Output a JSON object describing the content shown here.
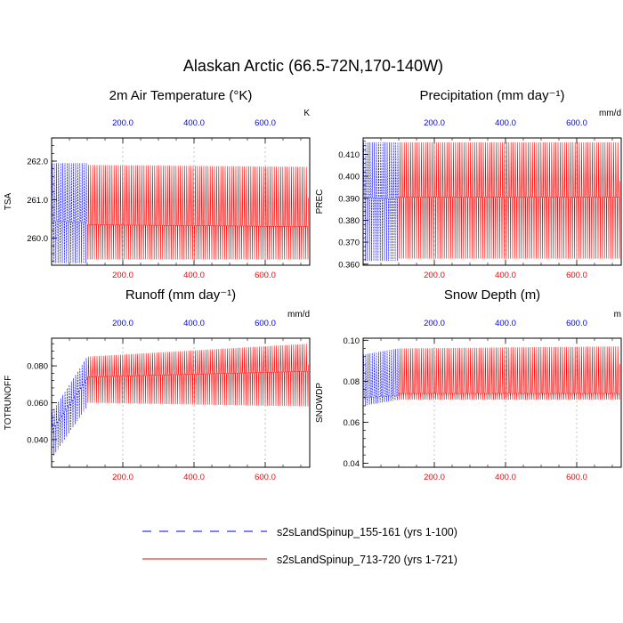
{
  "figure": {
    "title": "Alaskan Arctic (66.5-72N,170-140W)"
  },
  "legend": [
    {
      "label": "s2sLandSpinup_155-161 (yrs 1-100)",
      "color": "#0000ff",
      "style": "dashed"
    },
    {
      "label": "s2sLandSpinup_713-720 (yrs 1-721)",
      "color": "#ff0000",
      "style": "solid"
    }
  ],
  "colors": {
    "series_a": "#0000ff",
    "series_b": "#ff0000",
    "grid": "#9a9a9a",
    "axis": "#000000"
  },
  "chart_data": [
    {
      "type": "line",
      "id": "tsa",
      "title": "2m Air Temperature (°K)",
      "units": "K",
      "ylabel": "TSA",
      "xlim": [
        0,
        725
      ],
      "ylim": [
        259.3,
        262.6
      ],
      "yticks": [
        260.0,
        261.0,
        262.0
      ],
      "ytick_labels": [
        "260.0",
        "261.0",
        "262.0"
      ],
      "top_ticks": [
        200,
        400,
        600
      ],
      "top_tick_labels": [
        "200.0",
        "400.0",
        "600.0"
      ],
      "bottom_ticks": [
        200,
        400,
        600
      ],
      "bottom_tick_labels": [
        "200.0",
        "400.0",
        "600.0"
      ],
      "grid_x": [
        200,
        400,
        600
      ],
      "series": [
        {
          "name": "s2sLandSpinup_155-161 (yrs 1-100)",
          "x_range": [
            1,
            100
          ],
          "cycle_max": [
            261.95,
            261.95
          ],
          "cycle_min": [
            259.35,
            259.35
          ],
          "mean_line": [
            260.45,
            260.4
          ]
        },
        {
          "name": "s2sLandSpinup_713-720 (yrs 1-721)",
          "x_range": [
            100,
            721
          ],
          "cycle_max": [
            261.9,
            261.85
          ],
          "cycle_min": [
            259.45,
            259.45
          ],
          "mean_line": [
            260.35,
            260.3
          ]
        }
      ]
    },
    {
      "type": "line",
      "id": "prec",
      "title": "Precipitation (mm day⁻¹)",
      "units": "mm/d",
      "ylabel": "PREC",
      "xlim": [
        0,
        725
      ],
      "ylim": [
        0.3595,
        0.4175
      ],
      "yticks": [
        0.36,
        0.37,
        0.38,
        0.39,
        0.4,
        0.41
      ],
      "ytick_labels": [
        "0.360",
        "0.370",
        "0.380",
        "0.390",
        "0.400",
        "0.410"
      ],
      "top_ticks": [
        200,
        400,
        600
      ],
      "top_tick_labels": [
        "200.0",
        "400.0",
        "600.0"
      ],
      "bottom_ticks": [
        200,
        400,
        600
      ],
      "bottom_tick_labels": [
        "200.0",
        "400.0",
        "600.0"
      ],
      "grid_x": [
        200,
        400,
        600
      ],
      "series": [
        {
          "name": "s2sLandSpinup_155-161 (yrs 1-100)",
          "x_range": [
            1,
            100
          ],
          "cycle_max": [
            0.4155,
            0.4155
          ],
          "cycle_min": [
            0.3615,
            0.3615
          ],
          "mean_line": [
            0.39,
            0.39
          ]
        },
        {
          "name": "s2sLandSpinup_713-720 (yrs 1-721)",
          "x_range": [
            100,
            721
          ],
          "cycle_max": [
            0.4155,
            0.4155
          ],
          "cycle_min": [
            0.3625,
            0.3625
          ],
          "mean_line": [
            0.3905,
            0.3905
          ]
        }
      ]
    },
    {
      "type": "line",
      "id": "runoff",
      "title": "Runoff (mm day⁻¹)",
      "units": "mm/d",
      "ylabel": "TOTRUNOFF",
      "xlim": [
        0,
        725
      ],
      "ylim": [
        0.025,
        0.095
      ],
      "yticks": [
        0.04,
        0.06,
        0.08
      ],
      "ytick_labels": [
        "0.040",
        "0.060",
        "0.080"
      ],
      "top_ticks": [
        200,
        400,
        600
      ],
      "top_tick_labels": [
        "200.0",
        "400.0",
        "600.0"
      ],
      "bottom_ticks": [
        200,
        400,
        600
      ],
      "bottom_tick_labels": [
        "200.0",
        "400.0",
        "600.0"
      ],
      "grid_x": [
        200,
        400,
        600
      ],
      "series": [
        {
          "name": "s2sLandSpinup_155-161 (yrs 1-100)",
          "x_range": [
            1,
            100
          ],
          "cycle_max": [
            0.055,
            0.085
          ],
          "cycle_min": [
            0.03,
            0.058
          ],
          "mean_line": [
            0.045,
            0.073
          ]
        },
        {
          "name": "s2sLandSpinup_713-720 (yrs 1-721)",
          "x_range": [
            100,
            721
          ],
          "cycle_max": [
            0.085,
            0.092
          ],
          "cycle_min": [
            0.06,
            0.058
          ],
          "mean_line": [
            0.074,
            0.077
          ]
        }
      ]
    },
    {
      "type": "line",
      "id": "snowdp",
      "title": "Snow Depth (m)",
      "units": "m",
      "ylabel": "SNOWDP",
      "xlim": [
        0,
        725
      ],
      "ylim": [
        0.038,
        0.101
      ],
      "yticks": [
        0.04,
        0.06,
        0.08,
        0.1
      ],
      "ytick_labels": [
        "0.04",
        "0.06",
        "0.08",
        "0.10"
      ],
      "top_ticks": [
        200,
        400,
        600
      ],
      "top_tick_labels": [
        "200.0",
        "400.0",
        "600.0"
      ],
      "bottom_ticks": [
        200,
        400,
        600
      ],
      "bottom_tick_labels": [
        "200.0",
        "400.0",
        "600.0"
      ],
      "grid_x": [
        200,
        400,
        600
      ],
      "series": [
        {
          "name": "s2sLandSpinup_155-161 (yrs 1-100)",
          "x_range": [
            1,
            100
          ],
          "cycle_max": [
            0.093,
            0.096
          ],
          "cycle_min": [
            0.068,
            0.071
          ],
          "mean_line": [
            0.072,
            0.073
          ]
        },
        {
          "name": "s2sLandSpinup_713-720 (yrs 1-721)",
          "x_range": [
            100,
            721
          ],
          "cycle_max": [
            0.096,
            0.097
          ],
          "cycle_min": [
            0.071,
            0.071
          ],
          "mean_line": [
            0.074,
            0.074
          ]
        }
      ]
    }
  ]
}
